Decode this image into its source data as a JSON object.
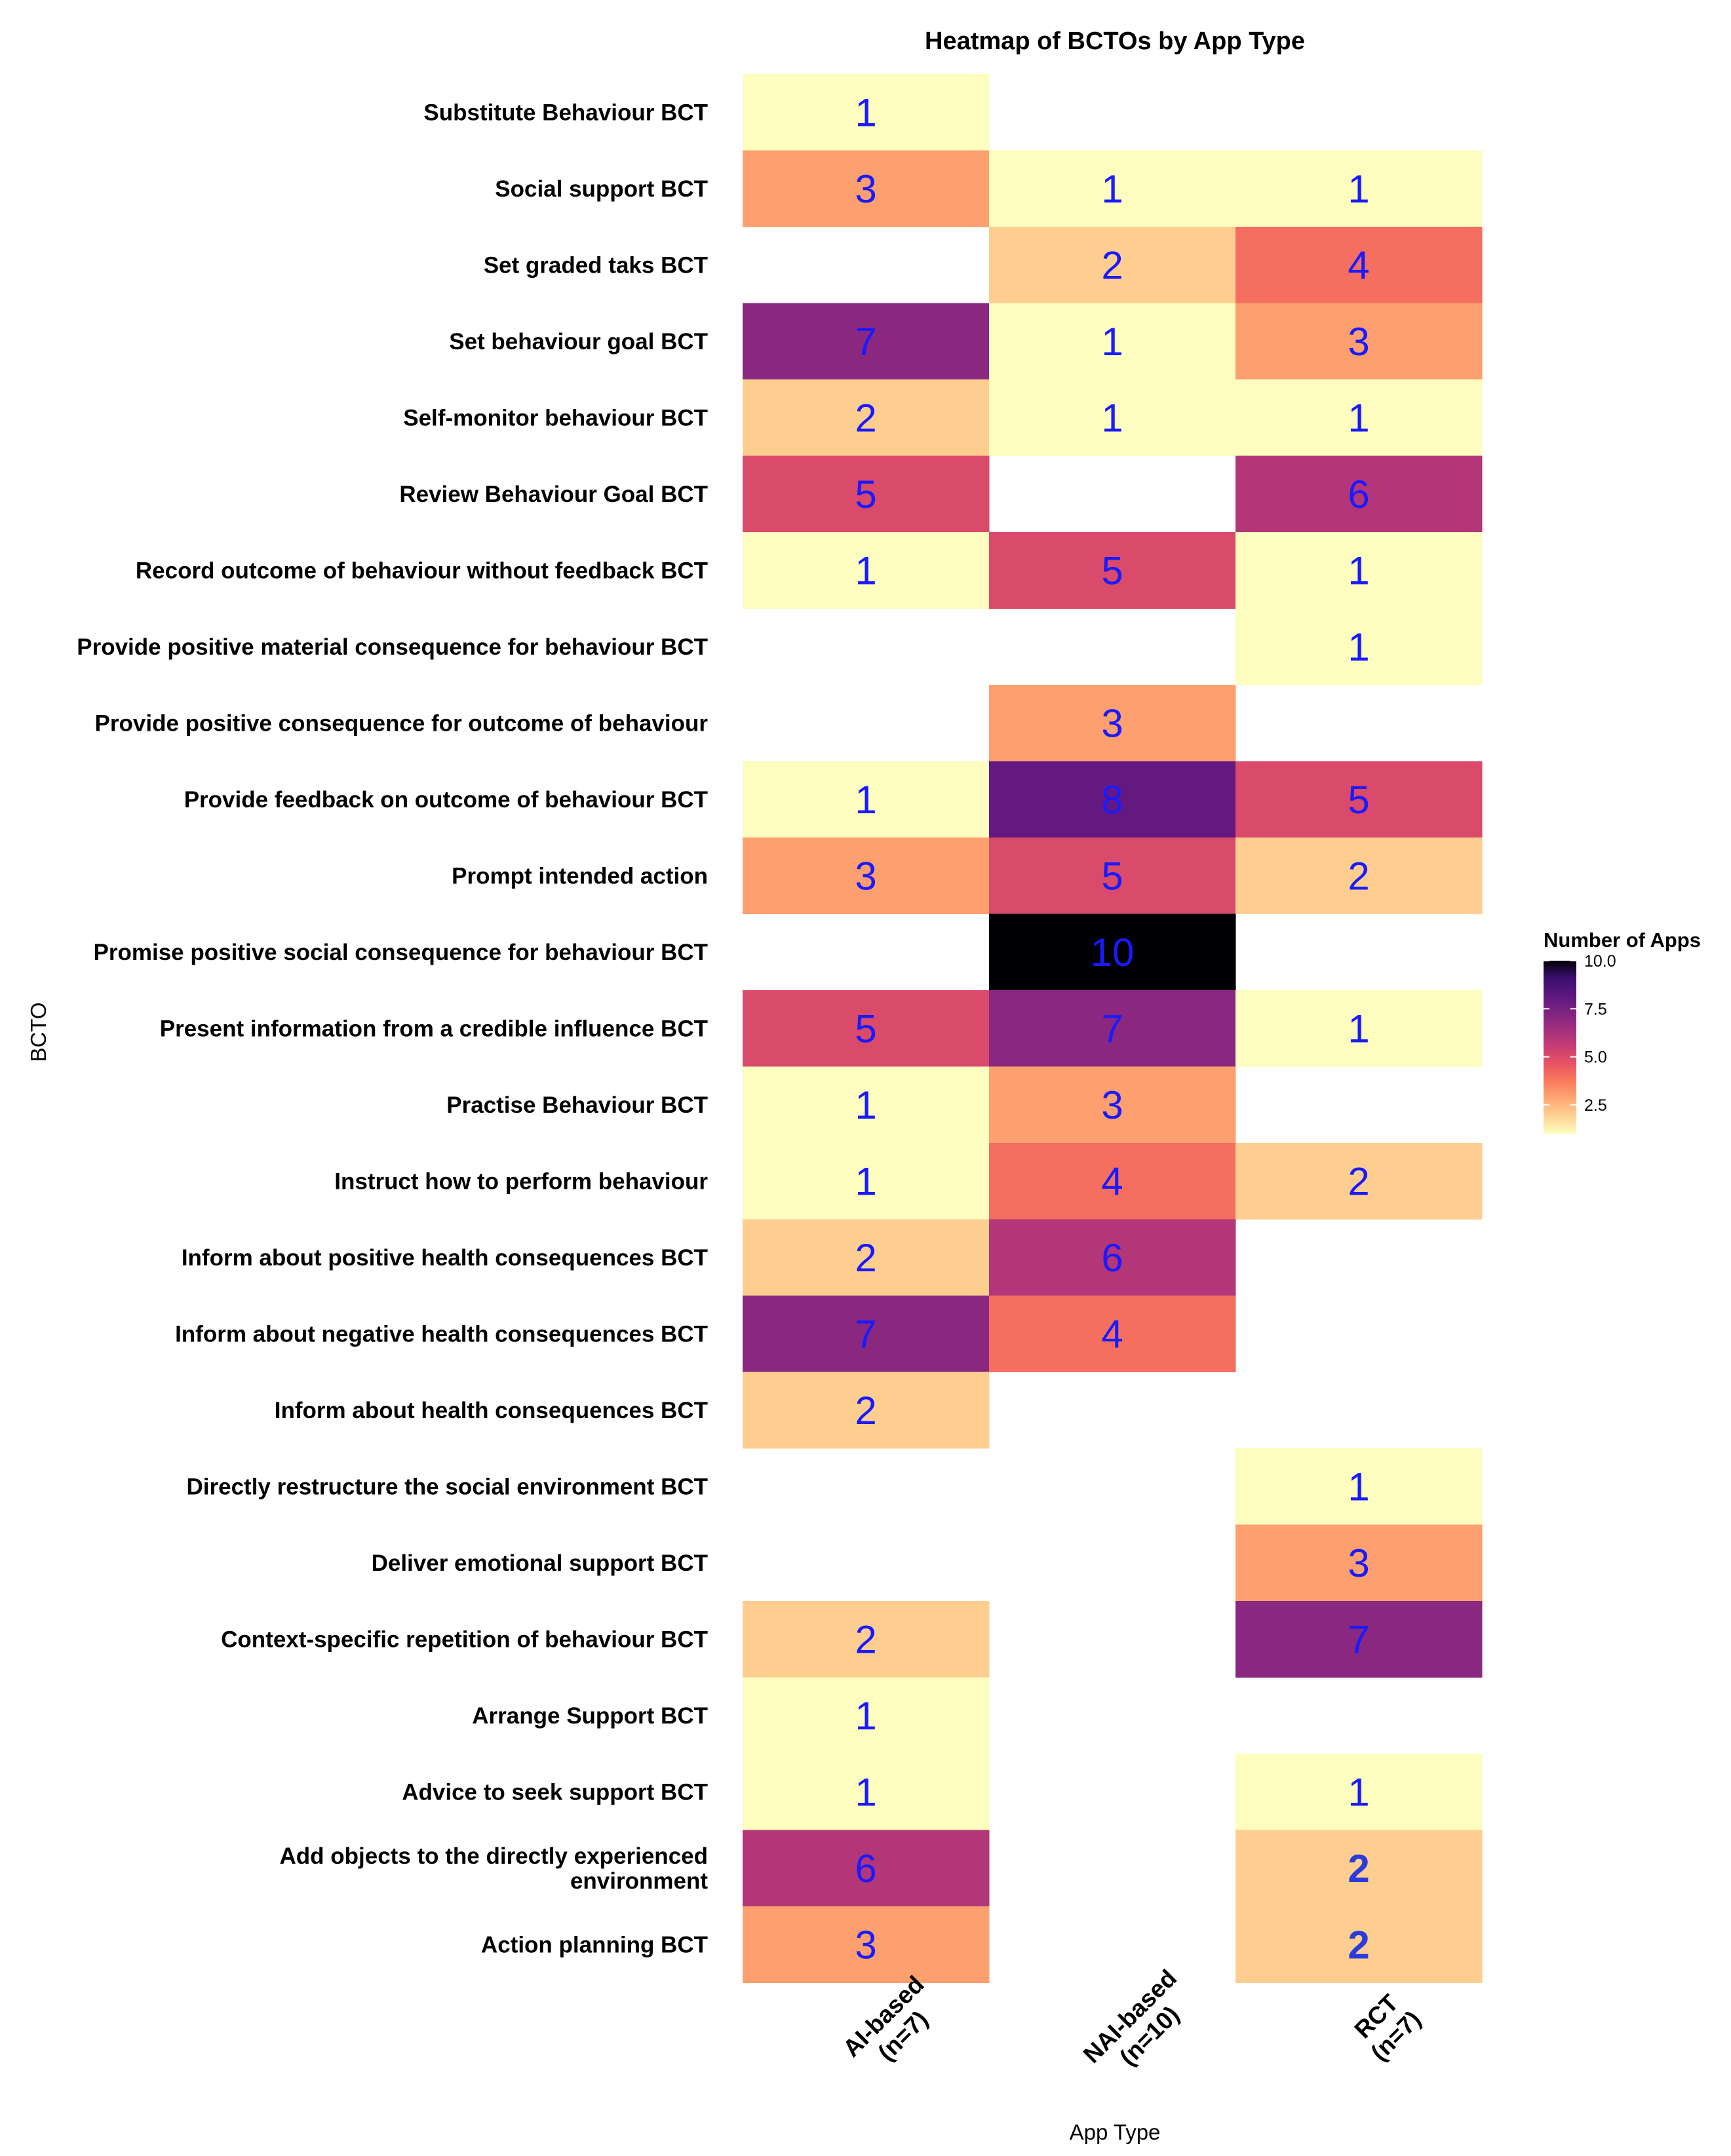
{
  "chart_data": {
    "type": "heatmap",
    "title": "Heatmap of BCTOs by App Type",
    "xlabel": "App Type",
    "ylabel": "BCTO",
    "columns": [
      {
        "line1": "AI-based",
        "line2": "(n=7)"
      },
      {
        "line1": "NAI-based",
        "line2": "(n=10)"
      },
      {
        "line1": "RCT",
        "line2": "(n=7)"
      }
    ],
    "rows": [
      {
        "label": [
          "Substitute Behaviour BCT"
        ],
        "values": [
          1,
          null,
          null
        ]
      },
      {
        "label": [
          "Social support BCT"
        ],
        "values": [
          3,
          1,
          1
        ]
      },
      {
        "label": [
          "Set graded taks BCT"
        ],
        "values": [
          null,
          2,
          4
        ]
      },
      {
        "label": [
          "Set behaviour goal BCT"
        ],
        "values": [
          7,
          1,
          3
        ]
      },
      {
        "label": [
          "Self-monitor behaviour BCT"
        ],
        "values": [
          2,
          1,
          1
        ]
      },
      {
        "label": [
          "Review Behaviour Goal BCT"
        ],
        "values": [
          5,
          null,
          6
        ]
      },
      {
        "label": [
          "Record outcome of behaviour without feedback BCT"
        ],
        "values": [
          1,
          5,
          1
        ]
      },
      {
        "label": [
          "Provide positive material consequence for behaviour BCT"
        ],
        "values": [
          null,
          null,
          1
        ]
      },
      {
        "label": [
          "Provide positive consequence for outcome of behaviour"
        ],
        "values": [
          null,
          3,
          null
        ]
      },
      {
        "label": [
          "Provide feedback on outcome of behaviour BCT"
        ],
        "values": [
          1,
          8,
          5
        ]
      },
      {
        "label": [
          "Prompt intended action"
        ],
        "values": [
          3,
          5,
          2
        ]
      },
      {
        "label": [
          "Promise positive social consequence for behaviour BCT"
        ],
        "values": [
          null,
          10,
          null
        ]
      },
      {
        "label": [
          "Present information from a credible influence BCT"
        ],
        "values": [
          5,
          7,
          1
        ]
      },
      {
        "label": [
          "Practise Behaviour BCT"
        ],
        "values": [
          1,
          3,
          null
        ]
      },
      {
        "label": [
          "Instruct how to perform behaviour"
        ],
        "values": [
          1,
          4,
          2
        ]
      },
      {
        "label": [
          "Inform about positive health consequences BCT"
        ],
        "values": [
          2,
          6,
          null
        ]
      },
      {
        "label": [
          "Inform about negative health consequences BCT"
        ],
        "values": [
          7,
          4,
          null
        ]
      },
      {
        "label": [
          "Inform about health consequences BCT"
        ],
        "values": [
          2,
          null,
          null
        ]
      },
      {
        "label": [
          "Directly restructure the social environment BCT"
        ],
        "values": [
          null,
          null,
          1
        ]
      },
      {
        "label": [
          "Deliver emotional support BCT"
        ],
        "values": [
          null,
          null,
          3
        ]
      },
      {
        "label": [
          "Context-specific repetition of behaviour BCT"
        ],
        "values": [
          2,
          null,
          7
        ]
      },
      {
        "label": [
          "Arrange Support BCT"
        ],
        "values": [
          1,
          null,
          null
        ]
      },
      {
        "label": [
          "Advice to seek support BCT"
        ],
        "values": [
          1,
          null,
          1
        ]
      },
      {
        "label": [
          "Add objects to the directly experienced",
          "environment"
        ],
        "values": [
          6,
          null,
          2
        ]
      },
      {
        "label": [
          "Action planning BCT"
        ],
        "values": [
          3,
          null,
          2
        ]
      }
    ],
    "value_range": [
      1,
      10
    ],
    "colormap": "magma-reversed",
    "legend": {
      "title": "Number of Apps",
      "ticks": [
        10.0,
        7.5,
        5.0,
        2.5
      ],
      "tick_labels": [
        "10.0",
        "7.5",
        "5.0",
        "2.5"
      ],
      "position": "right"
    }
  },
  "colors": {
    "text_number": "#1a1aff",
    "scale": [
      "#fcfdbf",
      "#fed395",
      "#fea973",
      "#fa7d5e",
      "#e95462",
      "#c83e73",
      "#a3307e",
      "#7e2482",
      "#5c167f",
      "#3b0f70",
      "#000004"
    ]
  }
}
